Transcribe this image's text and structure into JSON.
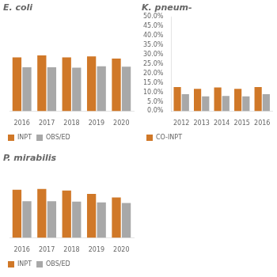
{
  "chart_data": [
    {
      "type": "bar",
      "title": "E. coli",
      "categories": [
        "2016",
        "2017",
        "2018",
        "2019",
        "2020"
      ],
      "series": [
        {
          "name": "INPT",
          "color": "#D07828",
          "values": [
            0.285,
            0.295,
            0.285,
            0.29,
            0.278
          ]
        },
        {
          "name": "OBS/ED",
          "color": "#A8A8A8",
          "values": [
            0.232,
            0.232,
            0.23,
            0.238,
            0.236
          ]
        }
      ],
      "ylim": [
        0,
        0.5
      ],
      "grid": false,
      "legend": "bottom",
      "tick_labels": "x"
    },
    {
      "type": "bar",
      "title": "K. pneum-",
      "categories": [
        "2012",
        "2013",
        "2014",
        "2015",
        "2016"
      ],
      "series": [
        {
          "name": "CO-INPT",
          "color": "#D07828",
          "values": [
            0.127,
            0.118,
            0.125,
            0.118,
            0.127
          ]
        },
        {
          "color": "#A8A8A8",
          "values": [
            0.09,
            0.078,
            0.08,
            0.078,
            0.09
          ]
        }
      ],
      "ylim": [
        0,
        0.5
      ],
      "yticks": [
        {
          "value": 0.0,
          "label": "0.0%"
        },
        {
          "value": 0.05,
          "label": "5.0%"
        },
        {
          "value": 0.1,
          "label": "10.0%"
        },
        {
          "value": 0.15,
          "label": "15.0%"
        },
        {
          "value": 0.2,
          "label": "20.0%"
        },
        {
          "value": 0.25,
          "label": "25.0%"
        },
        {
          "value": 0.3,
          "label": "30.0%"
        },
        {
          "value": 0.35,
          "label": "35.0%"
        },
        {
          "value": 0.4,
          "label": "40.0%"
        },
        {
          "value": 0.45,
          "label": "45.0%"
        },
        {
          "value": 0.5,
          "label": "50.0%"
        }
      ],
      "grid": false,
      "legend": "bottom"
    },
    {
      "type": "bar",
      "title": "P. mirabilis",
      "categories": [
        "2016",
        "2017",
        "2018",
        "2019",
        "2020"
      ],
      "series": [
        {
          "name": "INPT",
          "color": "#D07828",
          "values": [
            0.34,
            0.345,
            0.335,
            0.31,
            0.285
          ]
        },
        {
          "name": "OBS/ED",
          "color": "#A8A8A8",
          "values": [
            0.258,
            0.258,
            0.256,
            0.25,
            0.246
          ]
        }
      ],
      "ylim": [
        0,
        0.5
      ],
      "grid": false,
      "legend": "bottom",
      "tick_labels": "x"
    }
  ]
}
